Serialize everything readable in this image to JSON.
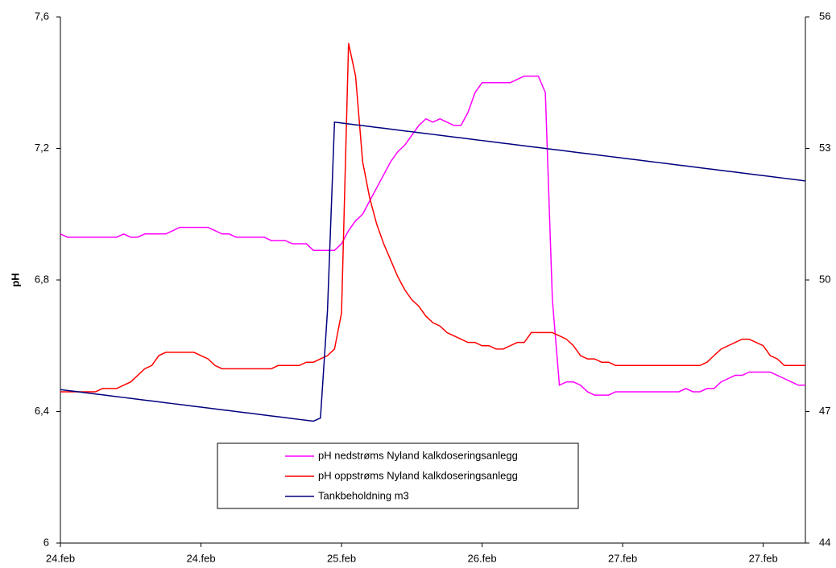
{
  "chart_data": {
    "type": "line",
    "y_label": "pH",
    "legend": "lower center",
    "grid": false,
    "x": [
      0,
      1,
      2,
      3,
      4,
      5,
      6,
      7,
      8,
      9,
      10,
      11,
      12,
      13,
      14,
      15,
      16,
      17,
      18,
      19,
      20,
      21,
      22,
      23,
      24,
      25,
      26,
      27,
      28,
      29,
      30,
      31,
      32,
      33,
      34,
      35,
      36,
      37,
      38,
      39,
      40,
      41,
      42,
      43,
      44,
      45,
      46,
      47,
      48,
      49,
      50,
      51,
      52,
      53,
      54,
      55,
      56,
      57,
      58,
      59,
      60,
      61,
      62,
      63,
      64,
      65,
      66,
      67,
      68,
      69,
      70,
      71,
      72,
      73,
      74,
      75,
      76,
      77,
      78,
      79,
      80,
      81,
      82,
      83,
      84,
      85,
      86,
      87,
      88,
      89,
      90,
      91,
      92,
      93,
      94,
      95,
      96,
      97,
      98,
      99,
      100,
      101,
      102,
      103,
      104,
      105,
      106
    ],
    "xlim": [
      0,
      106
    ],
    "xticks": [
      {
        "value": 0,
        "label": "24.feb"
      },
      {
        "value": 20,
        "label": "24.feb"
      },
      {
        "value": 40,
        "label": "25.feb"
      },
      {
        "value": 60,
        "label": "26.feb"
      },
      {
        "value": 80,
        "label": "27.feb"
      },
      {
        "value": 100,
        "label": "27.feb"
      }
    ],
    "ylim": [
      6,
      7.6
    ],
    "yticks": [
      6,
      {
        "value": 6.4,
        "label": "6,4"
      },
      {
        "value": 6.8,
        "label": "6,8"
      },
      {
        "value": 7.2,
        "label": "7,2"
      },
      {
        "value": 7.6,
        "label": "7,6"
      }
    ],
    "y2lim": [
      44,
      56
    ],
    "y2ticks": [
      44,
      47,
      50,
      53,
      56
    ],
    "series": [
      {
        "name": "pH nedstrøms Nyland kalkdoseringsanlegg",
        "color": "#ff00ff",
        "values": [
          6.94,
          6.93,
          6.93,
          6.93,
          6.93,
          6.93,
          6.93,
          6.93,
          6.93,
          6.94,
          6.93,
          6.93,
          6.94,
          6.94,
          6.94,
          6.94,
          6.95,
          6.96,
          6.96,
          6.96,
          6.96,
          6.96,
          6.95,
          6.94,
          6.94,
          6.93,
          6.93,
          6.93,
          6.93,
          6.93,
          6.92,
          6.92,
          6.92,
          6.91,
          6.91,
          6.91,
          6.89,
          6.89,
          6.89,
          6.89,
          6.91,
          6.95,
          6.98,
          7.0,
          7.04,
          7.08,
          7.12,
          7.16,
          7.19,
          7.21,
          7.24,
          7.27,
          7.29,
          7.28,
          7.29,
          7.28,
          7.27,
          7.27,
          7.31,
          7.37,
          7.4,
          7.4,
          7.4,
          7.4,
          7.4,
          7.41,
          7.42,
          7.42,
          7.42,
          7.37,
          6.74,
          6.48,
          6.49,
          6.49,
          6.48,
          6.46,
          6.45,
          6.45,
          6.45,
          6.46,
          6.46,
          6.46,
          6.46,
          6.46,
          6.46,
          6.46,
          6.46,
          6.46,
          6.46,
          6.47,
          6.46,
          6.46,
          6.47,
          6.47,
          6.49,
          6.5,
          6.51,
          6.51,
          6.52,
          6.52,
          6.52,
          6.52,
          6.51,
          6.5,
          6.49,
          6.48,
          6.48
        ]
      },
      {
        "name": "pH oppstrøms Nyland kalkdoseringsanlegg",
        "color": "#ff0000",
        "values": [
          6.46,
          6.46,
          6.46,
          6.46,
          6.46,
          6.46,
          6.47,
          6.47,
          6.47,
          6.48,
          6.49,
          6.51,
          6.53,
          6.54,
          6.57,
          6.58,
          6.58,
          6.58,
          6.58,
          6.58,
          6.57,
          6.56,
          6.54,
          6.53,
          6.53,
          6.53,
          6.53,
          6.53,
          6.53,
          6.53,
          6.53,
          6.54,
          6.54,
          6.54,
          6.54,
          6.55,
          6.55,
          6.56,
          6.57,
          6.59,
          6.7,
          7.52,
          7.42,
          7.16,
          7.05,
          6.97,
          6.91,
          6.86,
          6.81,
          6.77,
          6.74,
          6.72,
          6.69,
          6.67,
          6.66,
          6.64,
          6.63,
          6.62,
          6.61,
          6.61,
          6.6,
          6.6,
          6.59,
          6.59,
          6.6,
          6.61,
          6.61,
          6.64,
          6.64,
          6.64,
          6.64,
          6.63,
          6.62,
          6.6,
          6.57,
          6.56,
          6.56,
          6.55,
          6.55,
          6.54,
          6.54,
          6.54,
          6.54,
          6.54,
          6.54,
          6.54,
          6.54,
          6.54,
          6.54,
          6.54,
          6.54,
          6.54,
          6.55,
          6.57,
          6.59,
          6.6,
          6.61,
          6.62,
          6.62,
          6.61,
          6.6,
          6.57,
          6.56,
          6.54,
          6.54,
          6.54,
          6.54
        ]
      },
      {
        "name": "Tankbeholdning m3",
        "color": "#000080",
        "axis": "y2",
        "values": [
          47.5,
          47.48,
          47.46,
          47.44,
          47.42,
          47.4,
          47.38,
          47.36,
          47.34,
          47.32,
          47.3,
          47.28,
          47.26,
          47.24,
          47.22,
          47.2,
          47.18,
          47.16,
          47.14,
          47.12,
          47.1,
          47.08,
          47.06,
          47.04,
          47.02,
          47.0,
          46.98,
          46.96,
          46.94,
          46.92,
          46.9,
          46.88,
          46.86,
          46.84,
          46.82,
          46.8,
          46.78,
          46.85,
          49.3,
          53.6,
          53.58,
          53.56,
          53.54,
          53.52,
          53.5,
          53.48,
          53.46,
          53.44,
          53.42,
          53.4,
          53.38,
          53.36,
          53.34,
          53.32,
          53.3,
          53.28,
          53.26,
          53.24,
          53.22,
          53.2,
          53.18,
          53.16,
          53.14,
          53.12,
          53.1,
          53.08,
          53.06,
          53.04,
          53.02,
          53.0,
          52.98,
          52.96,
          52.94,
          52.92,
          52.9,
          52.88,
          52.86,
          52.84,
          52.82,
          52.8,
          52.78,
          52.76,
          52.74,
          52.72,
          52.7,
          52.68,
          52.66,
          52.64,
          52.62,
          52.6,
          52.58,
          52.56,
          52.54,
          52.52,
          52.5,
          52.48,
          52.46,
          52.44,
          52.42,
          52.4,
          52.38,
          52.36,
          52.34,
          52.32,
          52.3,
          52.28,
          52.26
        ]
      }
    ]
  }
}
